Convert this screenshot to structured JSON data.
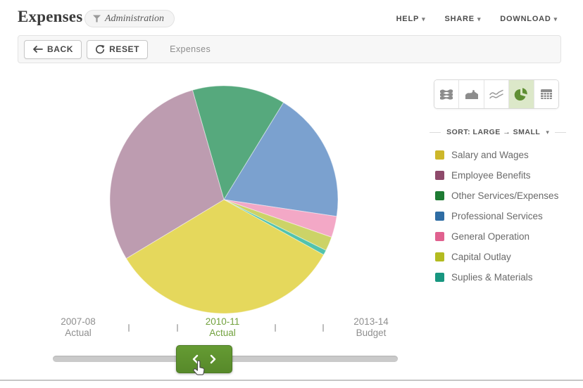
{
  "header": {
    "title": "Expenses",
    "filter_chip": "Administration",
    "menus": [
      {
        "label": "HELP"
      },
      {
        "label": "SHARE"
      },
      {
        "label": "DOWNLOAD"
      }
    ]
  },
  "toolbar": {
    "back_label": "BACK",
    "reset_label": "RESET",
    "breadcrumb": "Expenses"
  },
  "chart_switcher": {
    "active_view": "pie",
    "views": [
      "stream",
      "stacked-area",
      "line",
      "pie",
      "table"
    ],
    "active_bg": "#dce8c9",
    "active_icon_color": "#5f8f33",
    "inactive_icon_color": "#8c8c8c"
  },
  "sort": {
    "label": "SORT: LARGE → SMALL"
  },
  "legend": {
    "items": [
      {
        "label": "Salary and Wages",
        "color": "#cdb72a"
      },
      {
        "label": "Employee Benefits",
        "color": "#8e4a6b"
      },
      {
        "label": "Other Services/Expenses",
        "color": "#1e7b33"
      },
      {
        "label": "Professional Services",
        "color": "#2f6da4"
      },
      {
        "label": "General Operation",
        "color": "#e0618f"
      },
      {
        "label": "Capital Outlay",
        "color": "#b3bb20"
      },
      {
        "label": "Suplies & Materials",
        "color": "#189680"
      }
    ]
  },
  "chart_data": {
    "type": "pie",
    "title": "Expenses — Administration, 2010-11 Actual",
    "start_angle_deg": -16,
    "legend_position": "right",
    "slices": [
      {
        "label": "Other Services/Expenses",
        "value_pct": 13.2,
        "color": "#56a97d"
      },
      {
        "label": "Professional Services",
        "value_pct": 18.6,
        "color": "#7ba1cf"
      },
      {
        "label": "General Operation",
        "value_pct": 3.0,
        "color": "#f3a8c6"
      },
      {
        "label": "Capital Outlay",
        "value_pct": 2.0,
        "color": "#ccd367"
      },
      {
        "label": "Suplies & Materials",
        "value_pct": 0.7,
        "color": "#52c3ad"
      },
      {
        "label": "Salary and Wages",
        "value_pct": 33.3,
        "color": "#e5d85c"
      },
      {
        "label": "Employee Benefits",
        "value_pct": 29.2,
        "color": "#bd9cb0"
      }
    ]
  },
  "timeline": {
    "labels": [
      {
        "period": "2007-08",
        "kind": "Actual",
        "selected": false
      },
      {
        "period": "2010-11",
        "kind": "Actual",
        "selected": true
      },
      {
        "period": "2013-14",
        "kind": "Budget",
        "selected": false
      }
    ],
    "selected_color": "#71a13d"
  },
  "slider": {
    "handle_color": "#5e9431"
  }
}
